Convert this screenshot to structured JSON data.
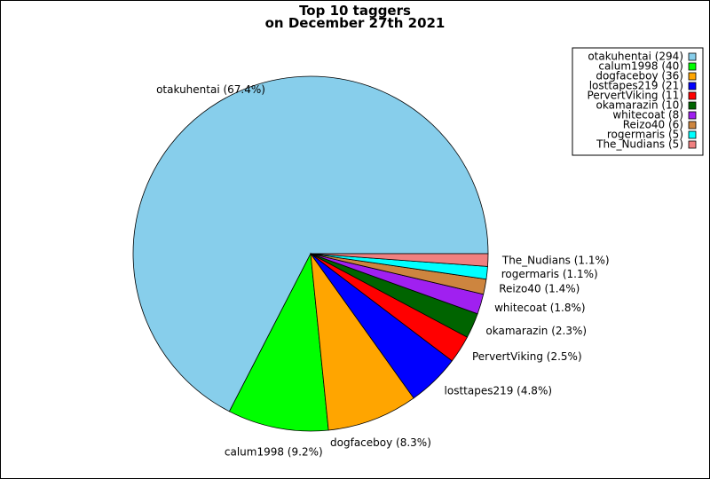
{
  "chart_data": {
    "type": "pie",
    "title": "Top 10 taggers",
    "subtitle": "on December 27th 2021",
    "slices": [
      {
        "name": "otakuhentai",
        "value": 294,
        "percent_label": "otakuhentai (67.4%)",
        "legend_label": "otakuhentai (294)",
        "color": "#87ceeb"
      },
      {
        "name": "calum1998",
        "value": 40,
        "percent_label": "calum1998 (9.2%)",
        "legend_label": "calum1998 (40)",
        "color": "#00ff00"
      },
      {
        "name": "dogfaceboy",
        "value": 36,
        "percent_label": "dogfaceboy (8.3%)",
        "legend_label": "dogfaceboy (36)",
        "color": "#ffa500"
      },
      {
        "name": "losttapes219",
        "value": 21,
        "percent_label": "losttapes219 (4.8%)",
        "legend_label": "losttapes219 (21)",
        "color": "#0000ff"
      },
      {
        "name": "PervertViking",
        "value": 11,
        "percent_label": "PervertViking (2.5%)",
        "legend_label": "PervertViking (11)",
        "color": "#ff0000"
      },
      {
        "name": "okamarazin",
        "value": 10,
        "percent_label": "okamarazin (2.3%)",
        "legend_label": "okamarazin (10)",
        "color": "#006400"
      },
      {
        "name": "whitecoat",
        "value": 8,
        "percent_label": "whitecoat (1.8%)",
        "legend_label": "whitecoat (8)",
        "color": "#a020f0"
      },
      {
        "name": "Reizo40",
        "value": 6,
        "percent_label": "Reizo40 (1.4%)",
        "legend_label": "Reizo40 (6)",
        "color": "#cd853f"
      },
      {
        "name": "rogermaris",
        "value": 5,
        "percent_label": "rogermaris (1.1%)",
        "legend_label": "rogermaris (5)",
        "color": "#00ffff"
      },
      {
        "name": "The_Nudians",
        "value": 5,
        "percent_label": "The_Nudians (1.1%)",
        "legend_label": "The_Nudians (5)",
        "color": "#f08080"
      }
    ],
    "start_angle": "3 o'clock",
    "direction": "counterclockwise",
    "legend_position": "top-right"
  }
}
